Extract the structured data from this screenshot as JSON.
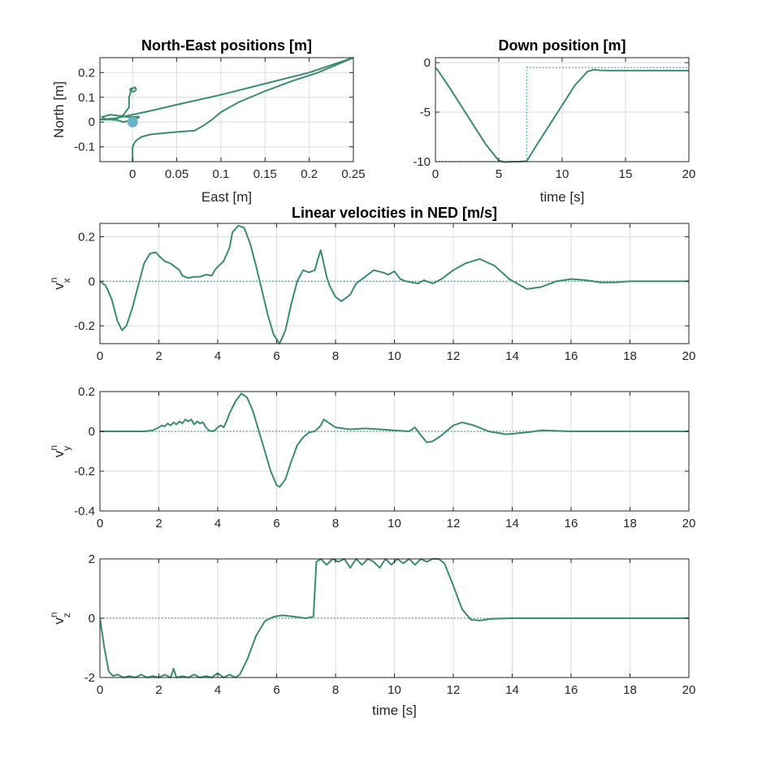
{
  "colors": {
    "actual": "#3a8c6e",
    "reference": "#4aa3b5",
    "grid": "#dcdcdc",
    "axis": "#262626"
  },
  "chart_data": [
    {
      "id": "ne",
      "type": "line",
      "title": "North-East positions [m]",
      "xlabel": "East [m]",
      "ylabel": "North [m]",
      "xlim": [
        -0.037,
        0.25
      ],
      "ylim": [
        -0.16,
        0.26
      ],
      "xticks": [
        0,
        0.05,
        0.1,
        0.15,
        0.2,
        0.25
      ],
      "xtick_labels": [
        "0",
        "0.05",
        "0.1",
        "0.15",
        "0.2",
        "0.25"
      ],
      "yticks": [
        -0.1,
        0,
        0.1,
        0.2
      ],
      "ytick_labels": [
        "-0.1",
        "0",
        "0.1",
        "0.2"
      ],
      "grid": true,
      "series": [
        {
          "role": "actual",
          "style": "solid",
          "x": [
            0,
            0,
            0.002,
            0.004,
            0.01,
            0.02,
            0.05,
            0.07,
            0.075,
            0.08,
            0.09,
            0.1,
            0.12,
            0.15,
            0.18,
            0.21,
            0.25,
            0.2,
            0.15,
            0.1,
            0.05,
            0.02,
            0,
            -0.02,
            -0.037,
            -0.02,
            -0.01,
            -0.005,
            0,
            0.005,
            0.008
          ],
          "y": [
            -0.16,
            -0.1,
            -0.085,
            -0.075,
            -0.06,
            -0.05,
            -0.04,
            -0.035,
            -0.025,
            -0.015,
            0.01,
            0.04,
            0.08,
            0.125,
            0.165,
            0.2,
            0.26,
            0.2,
            0.155,
            0.11,
            0.07,
            0.045,
            0.03,
            0.015,
            0.01,
            0.01,
            0,
            0.005,
            0.01,
            0.015,
            0.02
          ]
        },
        {
          "role": "actual",
          "style": "solid",
          "x": [
            0.008,
            -0.005,
            -0.015,
            -0.025,
            -0.035,
            -0.03,
            -0.02,
            -0.01,
            -0.004,
            -0.004,
            -0.001,
            0.003,
            0.004,
            0.001,
            -0.002,
            -0.003,
            -0.001,
            0.001
          ],
          "y": [
            0.022,
            0.02,
            0.025,
            0.03,
            0.02,
            0.012,
            0.008,
            0.03,
            0.06,
            0.1,
            0.135,
            0.14,
            0.13,
            0.122,
            0.125,
            0.132,
            0.137,
            0.133
          ]
        },
        {
          "role": "target-marker",
          "style": "marker",
          "x": [
            0
          ],
          "y": [
            0
          ]
        }
      ]
    },
    {
      "id": "down",
      "type": "line",
      "title": "Down position [m]",
      "xlabel": "time [s]",
      "ylabel": "",
      "xlim": [
        0,
        20
      ],
      "ylim": [
        -10,
        0.5
      ],
      "xticks": [
        0,
        5,
        10,
        15,
        20
      ],
      "xtick_labels": [
        "0",
        "5",
        "10",
        "15",
        "20"
      ],
      "yticks": [
        -10,
        -5,
        0
      ],
      "ytick_labels": [
        "-10",
        "-5",
        "0"
      ],
      "grid": true,
      "series": [
        {
          "role": "actual",
          "style": "solid",
          "x": [
            0,
            0.2,
            1,
            2,
            3,
            4,
            5,
            5.5,
            6,
            6.5,
            7.2,
            8,
            9,
            10,
            11,
            12,
            12.5,
            13,
            14,
            20
          ],
          "y": [
            -0.5,
            -0.8,
            -2.3,
            -4.3,
            -6.3,
            -8.3,
            -9.9,
            -10.05,
            -10,
            -10,
            -9.95,
            -8.3,
            -6.3,
            -4.3,
            -2.3,
            -0.9,
            -0.7,
            -0.78,
            -0.8,
            -0.8
          ]
        },
        {
          "role": "reference",
          "style": "dotted",
          "x": [
            0,
            7.2,
            7.2,
            20
          ],
          "y": [
            -10,
            -10,
            -0.5,
            -0.5
          ]
        }
      ]
    },
    {
      "id": "vx",
      "type": "line",
      "title": "Linear velocities in NED [m/s]",
      "xlabel": "",
      "ylabel": "v",
      "ylabel_sup": "n",
      "ylabel_sub": "x",
      "xlim": [
        0,
        20
      ],
      "ylim": [
        -0.28,
        0.26
      ],
      "xticks": [
        0,
        2,
        4,
        6,
        8,
        10,
        12,
        14,
        16,
        18,
        20
      ],
      "xtick_labels": [
        "0",
        "2",
        "4",
        "6",
        "8",
        "10",
        "12",
        "14",
        "16",
        "18",
        "20"
      ],
      "yticks": [
        -0.2,
        0,
        0.2
      ],
      "ytick_labels": [
        "-0.2",
        "0",
        "0.2"
      ],
      "grid": true,
      "series": [
        {
          "role": "actual",
          "style": "solid",
          "x": [
            0,
            0.2,
            0.4,
            0.6,
            0.75,
            0.9,
            1.1,
            1.3,
            1.5,
            1.7,
            1.9,
            2.0,
            2.2,
            2.4,
            2.5,
            2.7,
            2.8,
            3.0,
            3.2,
            3.4,
            3.6,
            3.8,
            3.9,
            4.0,
            4.2,
            4.4,
            4.5,
            4.7,
            4.9,
            5.1,
            5.3,
            5.5,
            5.7,
            5.9,
            6.1,
            6.3,
            6.5,
            6.7,
            6.9,
            7.1,
            7.3,
            7.4,
            7.5,
            7.6,
            7.7,
            7.8,
            8.0,
            8.2,
            8.5,
            8.7,
            9.0,
            9.3,
            9.6,
            9.8,
            10.0,
            10.2,
            10.4,
            10.6,
            10.8,
            11.0,
            11.3,
            11.6,
            12.0,
            12.4,
            12.9,
            13.4,
            13.9,
            14.5,
            15.0,
            15.5,
            16.0,
            16.5,
            17.0,
            17.5,
            18.0,
            18.5,
            19.0,
            19.5,
            20
          ],
          "y": [
            0,
            -0.02,
            -0.08,
            -0.18,
            -0.22,
            -0.2,
            -0.12,
            -0.02,
            0.08,
            0.125,
            0.13,
            0.115,
            0.09,
            0.08,
            0.07,
            0.05,
            0.025,
            0.015,
            0.02,
            0.02,
            0.03,
            0.025,
            0.05,
            0.065,
            0.09,
            0.15,
            0.22,
            0.25,
            0.24,
            0.17,
            0.07,
            -0.04,
            -0.15,
            -0.24,
            -0.28,
            -0.22,
            -0.1,
            0,
            0.05,
            0.04,
            0.05,
            0.1,
            0.14,
            0.08,
            0.02,
            -0.02,
            -0.07,
            -0.09,
            -0.06,
            -0.01,
            0.02,
            0.05,
            0.04,
            0.03,
            0.045,
            0.01,
            0,
            -0.005,
            -0.01,
            0.005,
            -0.01,
            0.01,
            0.05,
            0.08,
            0.1,
            0.07,
            0.01,
            -0.035,
            -0.025,
            0,
            0.01,
            0.005,
            -0.005,
            -0.005,
            0,
            0,
            0,
            0,
            0
          ]
        },
        {
          "role": "reference",
          "style": "dotted",
          "x": [
            0,
            20
          ],
          "y": [
            0,
            0
          ]
        }
      ]
    },
    {
      "id": "vy",
      "type": "line",
      "title": "",
      "xlabel": "",
      "ylabel": "v",
      "ylabel_sup": "n",
      "ylabel_sub": "y",
      "xlim": [
        0,
        20
      ],
      "ylim": [
        -0.4,
        0.2
      ],
      "xticks": [
        0,
        2,
        4,
        6,
        8,
        10,
        12,
        14,
        16,
        18,
        20
      ],
      "xtick_labels": [
        "0",
        "2",
        "4",
        "6",
        "8",
        "10",
        "12",
        "14",
        "16",
        "18",
        "20"
      ],
      "yticks": [
        -0.4,
        -0.2,
        0,
        0.2
      ],
      "ytick_labels": [
        "-0.4",
        "-0.2",
        "0",
        "0.2"
      ],
      "grid": true,
      "series": [
        {
          "role": "actual",
          "style": "solid",
          "x": [
            0,
            1.5,
            1.8,
            2.0,
            2.1,
            2.2,
            2.3,
            2.4,
            2.5,
            2.6,
            2.7,
            2.8,
            2.9,
            3.0,
            3.1,
            3.2,
            3.3,
            3.4,
            3.5,
            3.6,
            3.7,
            3.8,
            3.9,
            4.0,
            4.1,
            4.2,
            4.3,
            4.4,
            4.6,
            4.8,
            5.0,
            5.2,
            5.4,
            5.6,
            5.8,
            6.0,
            6.1,
            6.3,
            6.5,
            6.7,
            6.9,
            7.1,
            7.3,
            7.5,
            7.6,
            7.8,
            8.0,
            8.5,
            9.0,
            9.5,
            10.0,
            10.5,
            10.7,
            10.9,
            11.1,
            11.3,
            11.6,
            12.0,
            12.3,
            12.7,
            13.2,
            13.8,
            14.5,
            15.0,
            16.0,
            17.0,
            20
          ],
          "y": [
            0,
            0,
            0.005,
            0.02,
            0.03,
            0.025,
            0.04,
            0.03,
            0.045,
            0.035,
            0.05,
            0.04,
            0.06,
            0.05,
            0.06,
            0.035,
            0.05,
            0.04,
            0.045,
            0.02,
            0.005,
            0,
            0.005,
            0.02,
            0.03,
            0.02,
            0.05,
            0.09,
            0.15,
            0.19,
            0.17,
            0.1,
            0,
            -0.1,
            -0.2,
            -0.27,
            -0.28,
            -0.24,
            -0.15,
            -0.07,
            -0.03,
            -0.005,
            0,
            0.03,
            0.06,
            0.04,
            0.02,
            0.01,
            0.015,
            0.01,
            0.005,
            0,
            0.02,
            -0.02,
            -0.055,
            -0.05,
            -0.02,
            0.03,
            0.045,
            0.03,
            0,
            -0.015,
            -0.005,
            0.005,
            0,
            0,
            0
          ]
        },
        {
          "role": "reference",
          "style": "dotted",
          "x": [
            0,
            20
          ],
          "y": [
            0,
            0
          ]
        }
      ]
    },
    {
      "id": "vz",
      "type": "line",
      "title": "",
      "xlabel": "time [s]",
      "ylabel": "v",
      "ylabel_sup": "n",
      "ylabel_sub": "z",
      "xlim": [
        0,
        20
      ],
      "ylim": [
        -2,
        2
      ],
      "xticks": [
        0,
        2,
        4,
        6,
        8,
        10,
        12,
        14,
        16,
        18,
        20
      ],
      "xtick_labels": [
        "0",
        "2",
        "4",
        "6",
        "8",
        "10",
        "12",
        "14",
        "16",
        "18",
        "20"
      ],
      "yticks": [
        -2,
        0,
        2
      ],
      "ytick_labels": [
        "-2",
        "0",
        "2"
      ],
      "grid": true,
      "series": [
        {
          "role": "actual",
          "style": "solid",
          "x": [
            0,
            0.15,
            0.3,
            0.45,
            0.6,
            0.8,
            1.0,
            1.2,
            1.4,
            1.6,
            1.8,
            2.0,
            2.2,
            2.4,
            2.5,
            2.6,
            2.8,
            3.0,
            3.2,
            3.4,
            3.6,
            3.8,
            4.0,
            4.2,
            4.4,
            4.6,
            4.75,
            5.0,
            5.3,
            5.6,
            5.9,
            6.2,
            6.6,
            7.0,
            7.25,
            7.35,
            7.5,
            7.7,
            7.9,
            8.1,
            8.3,
            8.5,
            8.7,
            8.9,
            9.1,
            9.3,
            9.5,
            9.7,
            9.9,
            10.1,
            10.3,
            10.5,
            10.7,
            10.9,
            11.1,
            11.3,
            11.5,
            11.7,
            12.0,
            12.3,
            12.6,
            12.9,
            13.3,
            14.0,
            15.0,
            20
          ],
          "y": [
            0,
            -1.0,
            -1.8,
            -1.95,
            -1.9,
            -2,
            -1.95,
            -2,
            -1.9,
            -2,
            -1.95,
            -2,
            -1.9,
            -2,
            -1.7,
            -2,
            -1.95,
            -2,
            -1.9,
            -2,
            -1.95,
            -2,
            -1.85,
            -2,
            -1.9,
            -2,
            -1.9,
            -1.4,
            -0.6,
            -0.1,
            0.05,
            0.1,
            0.05,
            0,
            0.05,
            1.9,
            2,
            1.8,
            2,
            1.9,
            2,
            1.7,
            2,
            1.8,
            2,
            1.9,
            1.7,
            2,
            1.8,
            2,
            1.85,
            2,
            1.8,
            2,
            1.9,
            2,
            2,
            1.85,
            1.1,
            0.3,
            -0.05,
            -0.08,
            -0.02,
            0,
            0,
            0
          ]
        },
        {
          "role": "reference",
          "style": "dotted",
          "x": [
            0,
            20
          ],
          "y": [
            0,
            0
          ]
        }
      ]
    }
  ]
}
